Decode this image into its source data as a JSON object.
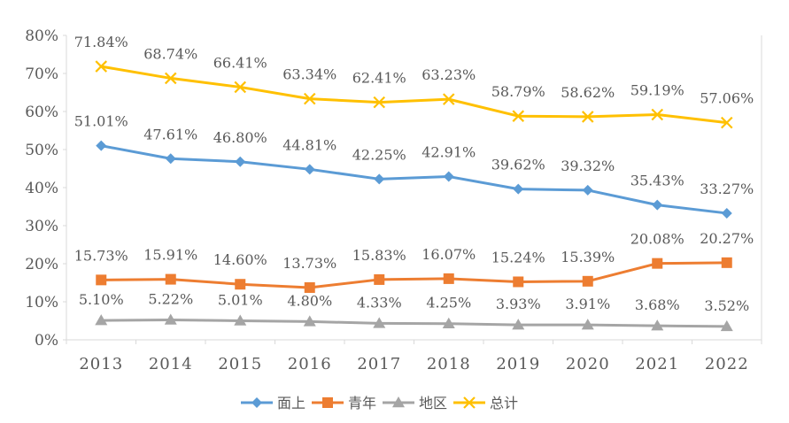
{
  "chart_data": {
    "type": "line",
    "title": "",
    "xlabel": "",
    "ylabel": "",
    "categories": [
      "2013",
      "2014",
      "2015",
      "2016",
      "2017",
      "2018",
      "2019",
      "2020",
      "2021",
      "2022"
    ],
    "ylim": [
      0,
      80
    ],
    "y_ticks": [
      "0%",
      "10%",
      "20%",
      "30%",
      "40%",
      "50%",
      "60%",
      "70%",
      "80%"
    ],
    "grid": false,
    "legend_position": "bottom",
    "series": [
      {
        "name": "面上",
        "color": "#5b9bd5",
        "marker": "diamond",
        "values": [
          51.01,
          47.61,
          46.8,
          44.81,
          42.25,
          42.91,
          39.62,
          39.32,
          35.43,
          33.27
        ],
        "labels": [
          "51.01%",
          "47.61%",
          "46.80%",
          "44.81%",
          "42.25%",
          "42.91%",
          "39.62%",
          "39.32%",
          "35.43%",
          "33.27%"
        ]
      },
      {
        "name": "青年",
        "color": "#ed7d31",
        "marker": "square",
        "values": [
          15.73,
          15.91,
          14.6,
          13.73,
          15.83,
          16.07,
          15.24,
          15.39,
          20.08,
          20.27
        ],
        "labels": [
          "15.73%",
          "15.91%",
          "14.60%",
          "13.73%",
          "15.83%",
          "16.07%",
          "15.24%",
          "15.39%",
          "20.08%",
          "20.27%"
        ]
      },
      {
        "name": "地区",
        "color": "#a5a5a5",
        "marker": "triangle",
        "values": [
          5.1,
          5.22,
          5.01,
          4.8,
          4.33,
          4.25,
          3.93,
          3.91,
          3.68,
          3.52
        ],
        "labels": [
          "5.10%",
          "5.22%",
          "5.01%",
          "4.80%",
          "4.33%",
          "4.25%",
          "3.93%",
          "3.91%",
          "3.68%",
          "3.52%"
        ]
      },
      {
        "name": "总计",
        "color": "#ffc000",
        "marker": "x",
        "values": [
          71.84,
          68.74,
          66.41,
          63.34,
          62.41,
          63.23,
          58.79,
          58.62,
          59.19,
          57.06
        ],
        "labels": [
          "71.84%",
          "68.74%",
          "66.41%",
          "63.34%",
          "62.41%",
          "63.23%",
          "58.79%",
          "58.62%",
          "59.19%",
          "57.06%"
        ]
      }
    ]
  }
}
